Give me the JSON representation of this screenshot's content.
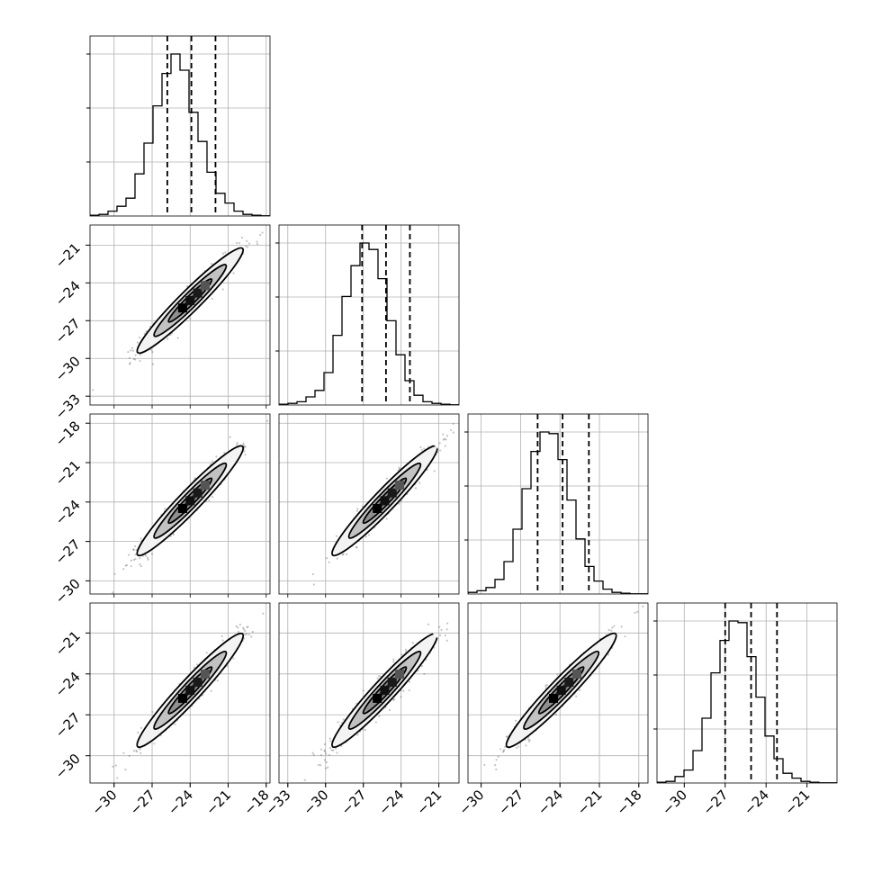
{
  "chart_data": {
    "type": "corner",
    "n_params": 4,
    "grid": true,
    "quantile_lines": "dashed",
    "colors": {
      "hist": "#000000",
      "grid": "#b0b0b0",
      "points": "#555555",
      "frame": "#000000"
    },
    "axes": [
      {
        "range": [
          -31.9,
          -17.7
        ],
        "ticks": [
          -30,
          -27,
          -24,
          -21,
          -18
        ],
        "tick_labels": [
          "−30",
          "−27",
          "−24",
          "−21",
          "−18"
        ]
      },
      {
        "range": [
          -33.7,
          -19.4
        ],
        "ticks": [
          -33,
          -30,
          -27,
          -24,
          -21
        ],
        "tick_labels": [
          "−33",
          "−30",
          "−27",
          "−24",
          "−21"
        ]
      },
      {
        "range": [
          -31.0,
          -17.3
        ],
        "ticks": [
          -30,
          -27,
          -24,
          -21,
          -18
        ],
        "tick_labels": [
          "−30",
          "−27",
          "−24",
          "−21",
          "−18"
        ]
      },
      {
        "range": [
          -32.0,
          -18.8
        ],
        "ticks": [
          -30,
          -27,
          -24,
          -21
        ],
        "tick_labels": [
          "−30",
          "−27",
          "−24",
          "−21"
        ]
      }
    ],
    "quantiles": [
      [
        -25.8,
        -23.9,
        -22.0
      ],
      [
        -27.1,
        -25.2,
        -23.3
      ],
      [
        -25.7,
        -23.8,
        -21.8
      ],
      [
        -27.0,
        -25.1,
        -23.2
      ]
    ],
    "histograms": [
      [
        0.005,
        0.01,
        0.03,
        0.06,
        0.11,
        0.26,
        0.45,
        0.68,
        0.88,
        1.0,
        0.9,
        0.64,
        0.46,
        0.27,
        0.14,
        0.08,
        0.03,
        0.01,
        0.005,
        0.001
      ],
      [
        0.005,
        0.01,
        0.02,
        0.05,
        0.09,
        0.2,
        0.43,
        0.67,
        0.86,
        1.0,
        0.96,
        0.78,
        0.52,
        0.31,
        0.15,
        0.06,
        0.02,
        0.01,
        0.005,
        0.001
      ],
      [
        0.01,
        0.02,
        0.04,
        0.09,
        0.2,
        0.4,
        0.65,
        0.88,
        1.0,
        0.99,
        0.83,
        0.58,
        0.34,
        0.17,
        0.08,
        0.03,
        0.01,
        0.005,
        0.001,
        0.001
      ],
      [
        0.005,
        0.01,
        0.04,
        0.08,
        0.2,
        0.4,
        0.68,
        0.88,
        1.0,
        0.99,
        0.78,
        0.53,
        0.29,
        0.15,
        0.06,
        0.03,
        0.01,
        0.005,
        0.001,
        0.001
      ]
    ],
    "pairs": [
      {
        "row": 1,
        "col": 0,
        "center": [
          -24.0,
          -25.4
        ],
        "sigma": [
          1.9,
          1.9
        ],
        "rho": 0.96
      },
      {
        "row": 2,
        "col": 0,
        "center": [
          -24.0,
          -23.9
        ],
        "sigma": [
          1.9,
          1.9
        ],
        "rho": 0.96
      },
      {
        "row": 2,
        "col": 1,
        "center": [
          -25.3,
          -23.9
        ],
        "sigma": [
          1.9,
          1.9
        ],
        "rho": 0.96
      },
      {
        "row": 3,
        "col": 0,
        "center": [
          -24.0,
          -25.2
        ],
        "sigma": [
          1.9,
          1.9
        ],
        "rho": 0.96
      },
      {
        "row": 3,
        "col": 1,
        "center": [
          -25.3,
          -25.2
        ],
        "sigma": [
          1.9,
          1.9
        ],
        "rho": 0.96
      },
      {
        "row": 3,
        "col": 2,
        "center": [
          -23.9,
          -25.2
        ],
        "sigma": [
          1.9,
          1.9
        ],
        "rho": 0.96
      }
    ]
  }
}
